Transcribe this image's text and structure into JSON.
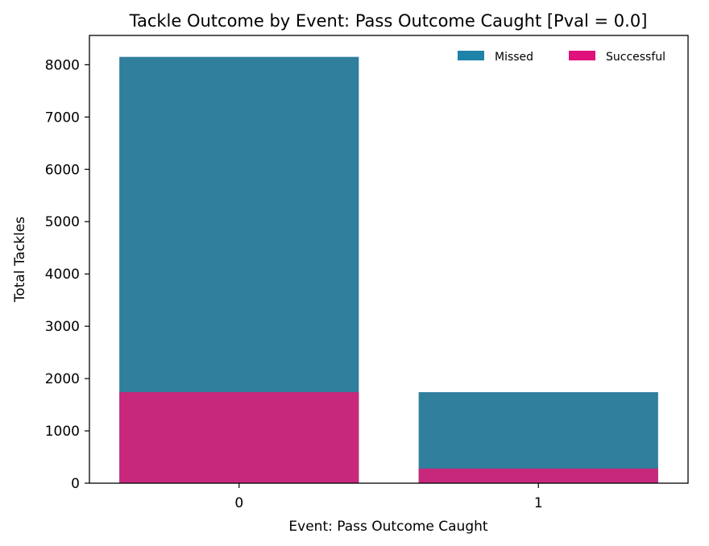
{
  "chart_data": {
    "type": "bar",
    "stacked": false,
    "title": "Tackle Outcome by Event: Pass Outcome Caught [Pval = 0.0]",
    "xlabel": "Event: Pass Outcome Caught",
    "ylabel": "Total Tackles",
    "categories": [
      "0",
      "1"
    ],
    "series": [
      {
        "name": "Missed",
        "values": [
          8150,
          1740
        ],
        "color": "#2f7f9d"
      },
      {
        "name": "Successful",
        "values": [
          1740,
          280
        ],
        "color": "#c8287c"
      }
    ],
    "legend_colors": [
      "#1f82a8",
      "#e0107c"
    ],
    "ylim": [
      0,
      8560
    ],
    "yticks": [
      0,
      1000,
      2000,
      3000,
      4000,
      5000,
      6000,
      7000,
      8000
    ],
    "legend": {
      "position": "top-right",
      "columns": 2
    },
    "grid": false
  }
}
